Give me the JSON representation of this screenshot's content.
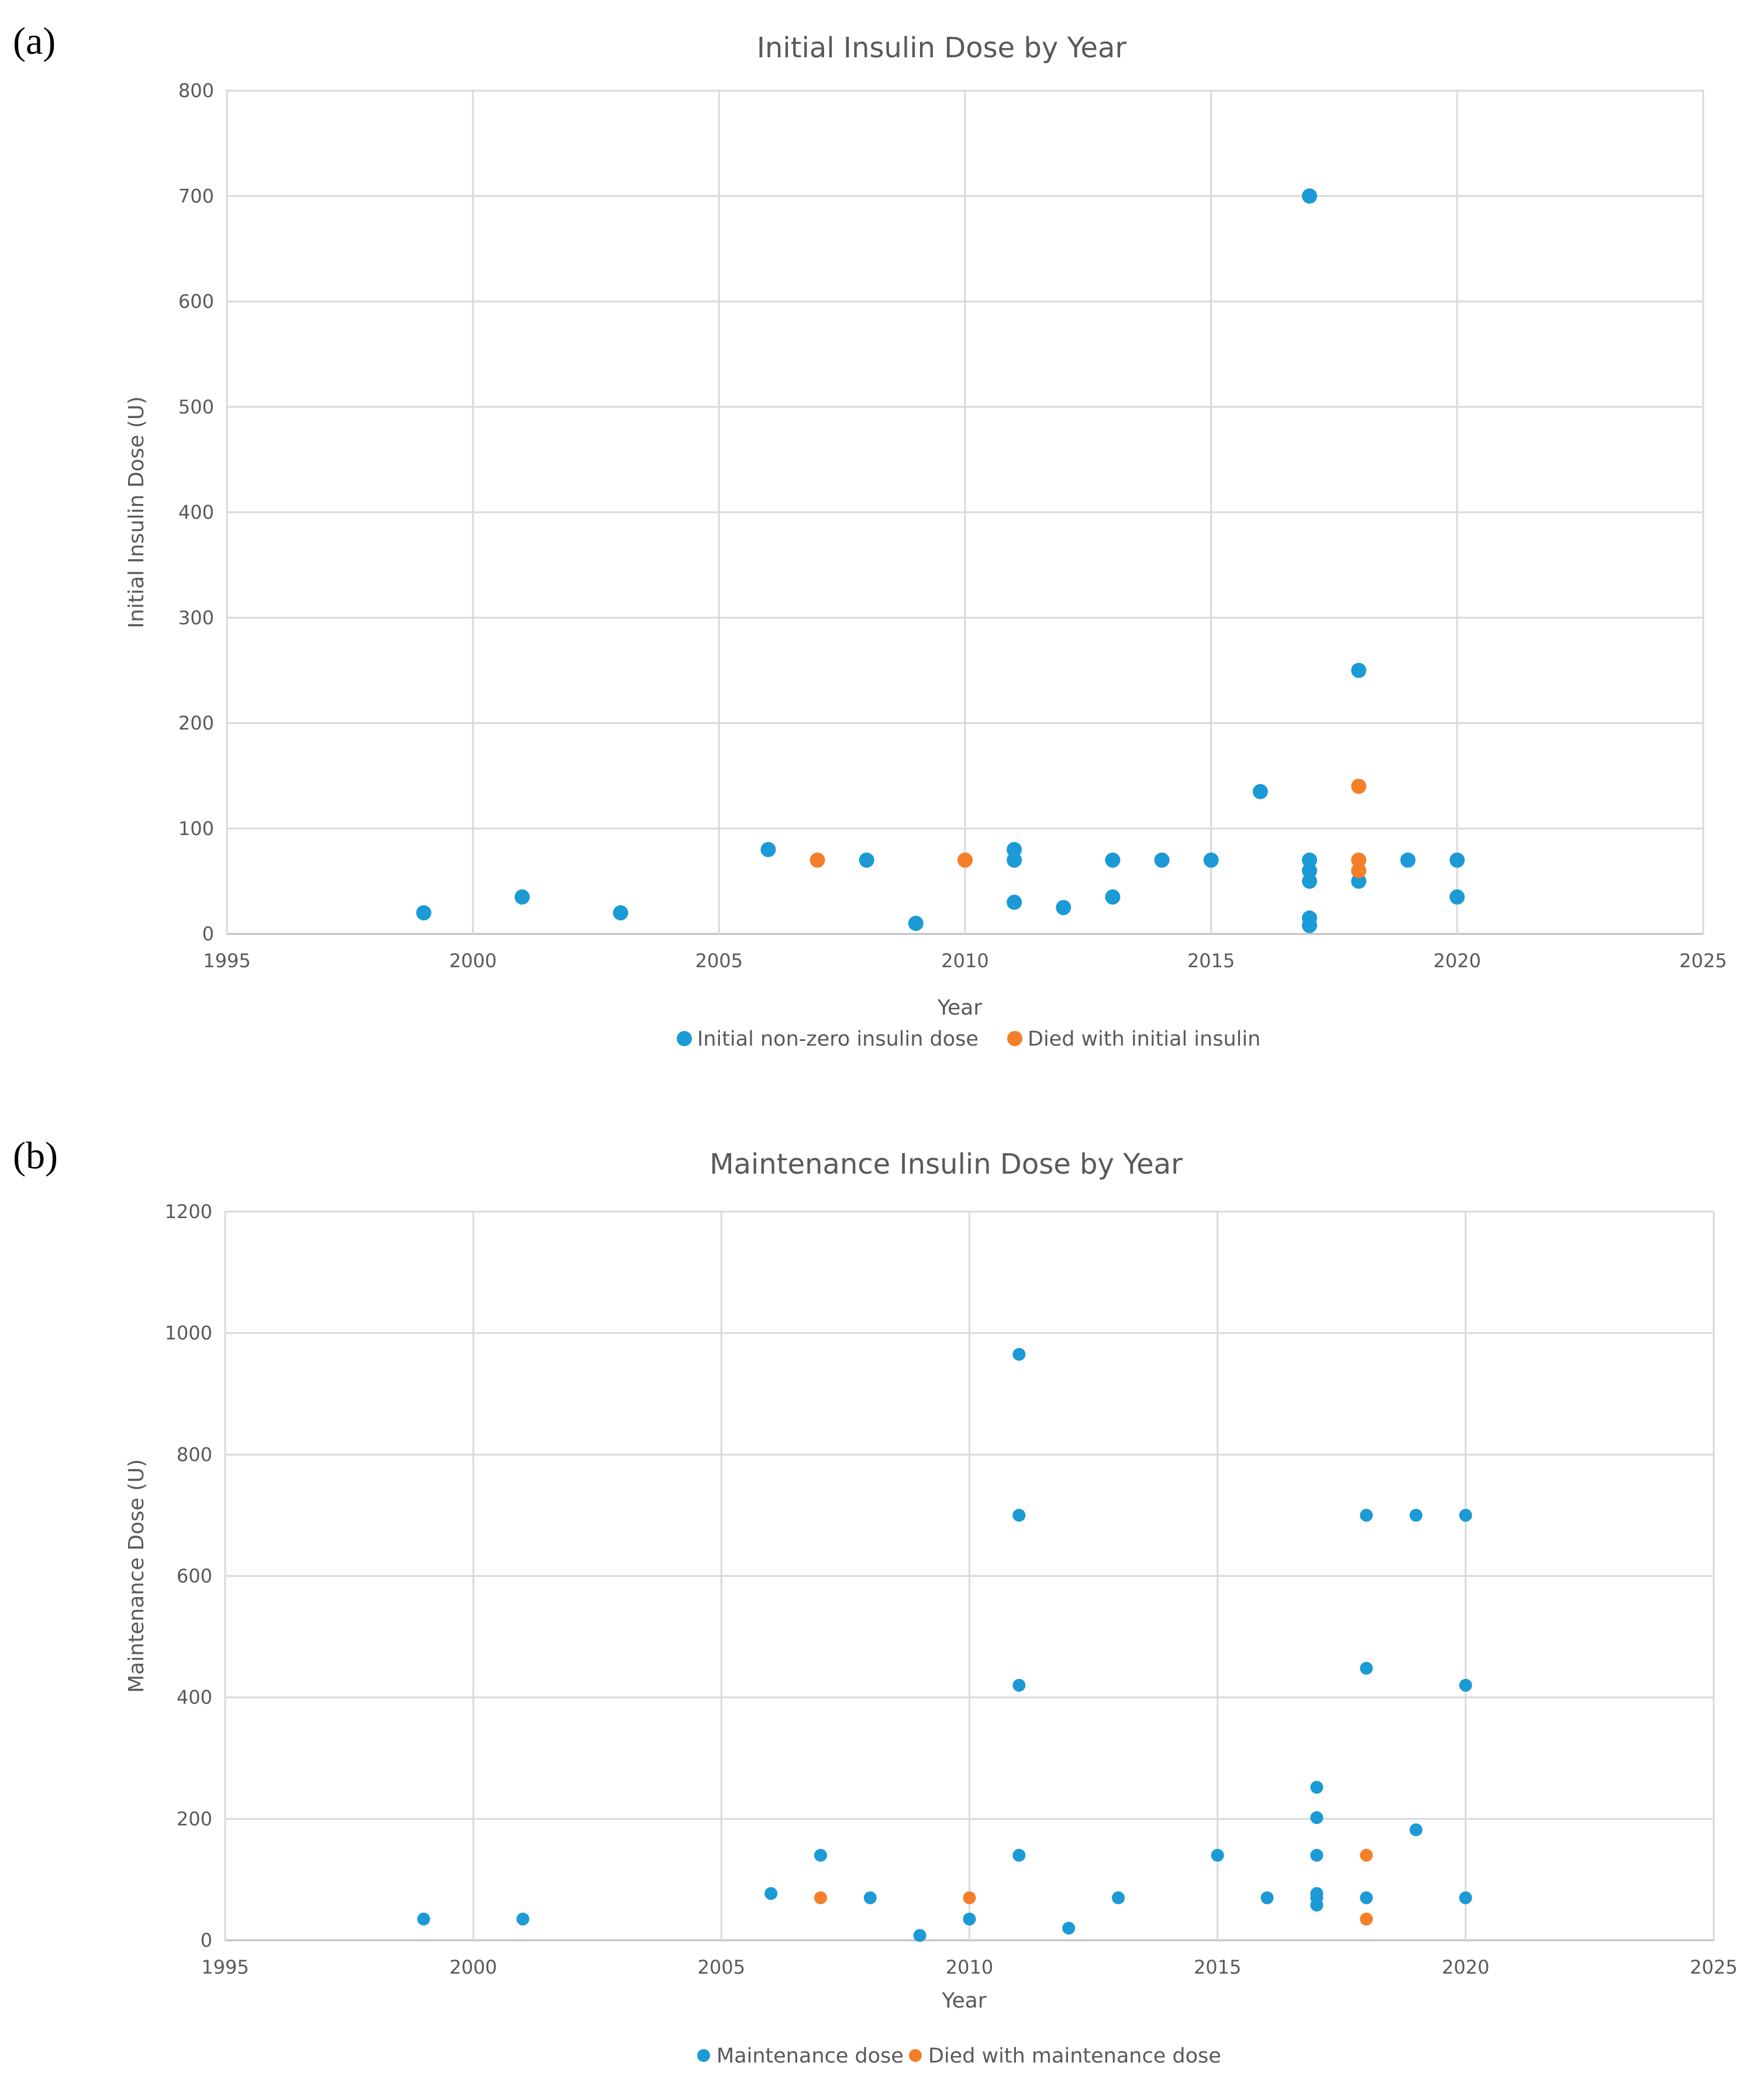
{
  "panels": [
    {
      "label": "(a)"
    },
    {
      "label": "(b)"
    }
  ],
  "chart_data": [
    {
      "type": "scatter",
      "title": "Initial Insulin Dose by Year",
      "xlabel": "Year",
      "ylabel": "Initial Insulin Dose (U)",
      "xlim": [
        1995,
        2025
      ],
      "ylim": [
        0,
        800
      ],
      "x_ticks": [
        1995,
        2000,
        2005,
        2010,
        2015,
        2020,
        2025
      ],
      "y_ticks": [
        0,
        100,
        200,
        300,
        400,
        500,
        600,
        700,
        800
      ],
      "grid": true,
      "legend_position": "bottom",
      "series": [
        {
          "name": "Initial non-zero insulin dose",
          "color": "#1b9ad6",
          "points": [
            [
              1999,
              20
            ],
            [
              2001,
              35
            ],
            [
              2003,
              20
            ],
            [
              2006,
              80
            ],
            [
              2008,
              70
            ],
            [
              2009,
              10
            ],
            [
              2011,
              80
            ],
            [
              2011,
              70
            ],
            [
              2011,
              30
            ],
            [
              2012,
              25
            ],
            [
              2013,
              70
            ],
            [
              2013,
              35
            ],
            [
              2014,
              70
            ],
            [
              2015,
              70
            ],
            [
              2016,
              135
            ],
            [
              2017,
              700
            ],
            [
              2017,
              70
            ],
            [
              2017,
              60
            ],
            [
              2017,
              50
            ],
            [
              2017,
              15
            ],
            [
              2017,
              8
            ],
            [
              2018,
              250
            ],
            [
              2018,
              50
            ],
            [
              2019,
              70
            ],
            [
              2020,
              70
            ],
            [
              2020,
              35
            ]
          ]
        },
        {
          "name": "Died with initial insulin",
          "color": "#f57f29",
          "points": [
            [
              2007,
              70
            ],
            [
              2010,
              70
            ],
            [
              2018,
              140
            ],
            [
              2018,
              70
            ],
            [
              2018,
              60
            ]
          ]
        }
      ]
    },
    {
      "type": "scatter",
      "title": "Maintenance Insulin Dose by Year",
      "xlabel": "Year",
      "ylabel": "Maintenance Dose (U)",
      "xlim": [
        1995,
        2025
      ],
      "ylim": [
        0,
        1200
      ],
      "x_ticks": [
        1995,
        2000,
        2005,
        2010,
        2015,
        2020,
        2025
      ],
      "y_ticks": [
        0,
        200,
        400,
        600,
        800,
        1000,
        1200
      ],
      "grid": true,
      "legend_position": "bottom",
      "series": [
        {
          "name": "Maintenance dose",
          "color": "#1b9ad6",
          "points": [
            [
              1999,
              35
            ],
            [
              2001,
              35
            ],
            [
              2006,
              77
            ],
            [
              2007,
              140
            ],
            [
              2008,
              70
            ],
            [
              2009,
              8
            ],
            [
              2010,
              35
            ],
            [
              2011,
              965
            ],
            [
              2011,
              700
            ],
            [
              2011,
              420
            ],
            [
              2011,
              140
            ],
            [
              2012,
              20
            ],
            [
              2013,
              70
            ],
            [
              2015,
              140
            ],
            [
              2016,
              70
            ],
            [
              2017,
              252
            ],
            [
              2017,
              202
            ],
            [
              2017,
              140
            ],
            [
              2017,
              77
            ],
            [
              2017,
              70
            ],
            [
              2017,
              58
            ],
            [
              2018,
              700
            ],
            [
              2018,
              448
            ],
            [
              2018,
              70
            ],
            [
              2019,
              700
            ],
            [
              2019,
              182
            ],
            [
              2020,
              700
            ],
            [
              2020,
              420
            ],
            [
              2020,
              70
            ]
          ]
        },
        {
          "name": "Died with maintenance dose",
          "color": "#f57f29",
          "points": [
            [
              2007,
              70
            ],
            [
              2010,
              70
            ],
            [
              2018,
              140
            ],
            [
              2018,
              35
            ]
          ]
        }
      ]
    }
  ]
}
